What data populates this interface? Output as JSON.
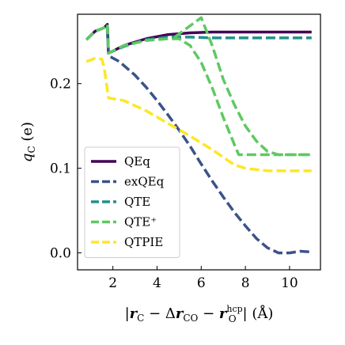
{
  "chart_data": {
    "type": "line",
    "title": "",
    "xlabel": "|r_C − Δr_CO − r_O^hcp| (Å)",
    "ylabel": "q_C (e)",
    "xlim": [
      0.4,
      11.4
    ],
    "ylim": [
      -0.02,
      0.282
    ],
    "xticks": [
      "2",
      "4",
      "6",
      "8",
      "10"
    ],
    "yticks": [
      "0.0",
      "0.1",
      "0.2"
    ],
    "grid": false,
    "legend_position": "lower-left",
    "series": [
      {
        "name": "QEq",
        "color": "#440154",
        "dash": "solid",
        "points": [
          [
            0.8,
            0.252
          ],
          [
            1.2,
            0.262
          ],
          [
            1.6,
            0.266
          ],
          [
            1.75,
            0.27
          ],
          [
            1.8,
            0.236
          ],
          [
            2.5,
            0.245
          ],
          [
            3.5,
            0.253
          ],
          [
            4.5,
            0.258
          ],
          [
            5.5,
            0.26
          ],
          [
            6.5,
            0.261
          ],
          [
            8.0,
            0.261
          ],
          [
            11.0,
            0.261
          ]
        ]
      },
      {
        "name": "exQEq",
        "color": "#3b528b",
        "dash": "dashed",
        "points": [
          [
            1.75,
            0.262
          ],
          [
            1.8,
            0.233
          ],
          [
            2.3,
            0.226
          ],
          [
            3.0,
            0.21
          ],
          [
            3.5,
            0.196
          ],
          [
            4.0,
            0.18
          ],
          [
            4.5,
            0.163
          ],
          [
            5.0,
            0.145
          ],
          [
            5.5,
            0.126
          ],
          [
            6.0,
            0.105
          ],
          [
            6.5,
            0.085
          ],
          [
            7.0,
            0.066
          ],
          [
            7.5,
            0.048
          ],
          [
            8.0,
            0.032
          ],
          [
            8.5,
            0.017
          ],
          [
            9.0,
            0.006
          ],
          [
            9.5,
            0.0
          ],
          [
            10.0,
            0.0
          ],
          [
            10.5,
            0.002
          ],
          [
            11.0,
            0.001
          ]
        ]
      },
      {
        "name": "QTE",
        "color": "#21918c",
        "dash": "dashed",
        "points": [
          [
            0.8,
            0.252
          ],
          [
            1.2,
            0.262
          ],
          [
            1.6,
            0.266
          ],
          [
            1.75,
            0.27
          ],
          [
            1.8,
            0.236
          ],
          [
            2.5,
            0.244
          ],
          [
            3.5,
            0.252
          ],
          [
            4.5,
            0.255
          ],
          [
            5.5,
            0.255
          ],
          [
            6.5,
            0.254
          ],
          [
            8.0,
            0.254
          ],
          [
            11.0,
            0.254
          ]
        ]
      },
      {
        "name": "QTE⁺",
        "color": "#5ec962",
        "dash": "dashed",
        "points": [
          [
            0.8,
            0.252
          ],
          [
            1.2,
            0.262
          ],
          [
            1.6,
            0.266
          ],
          [
            1.75,
            0.27
          ],
          [
            1.8,
            0.236
          ],
          [
            2.5,
            0.245
          ],
          [
            3.5,
            0.251
          ],
          [
            4.5,
            0.253
          ],
          [
            5.0,
            0.253
          ],
          [
            5.5,
            0.245
          ],
          [
            6.0,
            0.225
          ],
          [
            6.5,
            0.195
          ],
          [
            7.0,
            0.16
          ],
          [
            7.5,
            0.128
          ],
          [
            7.7,
            0.116
          ],
          [
            8.5,
            0.116
          ],
          [
            11.0,
            0.116
          ]
        ]
      },
      {
        "name": "",
        "color": "#5ec962",
        "dash": "dashed",
        "points": [
          [
            4.8,
            0.255
          ],
          [
            6.0,
            0.278
          ],
          [
            6.5,
            0.245
          ],
          [
            7.0,
            0.205
          ],
          [
            7.5,
            0.175
          ],
          [
            8.0,
            0.15
          ],
          [
            8.5,
            0.132
          ],
          [
            9.0,
            0.12
          ],
          [
            9.5,
            0.116
          ],
          [
            11.0,
            0.116
          ]
        ]
      },
      {
        "name": "QTPIE",
        "color": "#fde725",
        "dash": "dashed",
        "points": [
          [
            0.8,
            0.226
          ],
          [
            1.2,
            0.23
          ],
          [
            1.5,
            0.229
          ],
          [
            1.6,
            0.22
          ],
          [
            1.8,
            0.183
          ],
          [
            2.5,
            0.18
          ],
          [
            3.5,
            0.168
          ],
          [
            4.5,
            0.153
          ],
          [
            5.5,
            0.138
          ],
          [
            6.5,
            0.122
          ],
          [
            7.5,
            0.104
          ],
          [
            8.0,
            0.1
          ],
          [
            9.0,
            0.097
          ],
          [
            11.0,
            0.097
          ]
        ]
      }
    ]
  }
}
